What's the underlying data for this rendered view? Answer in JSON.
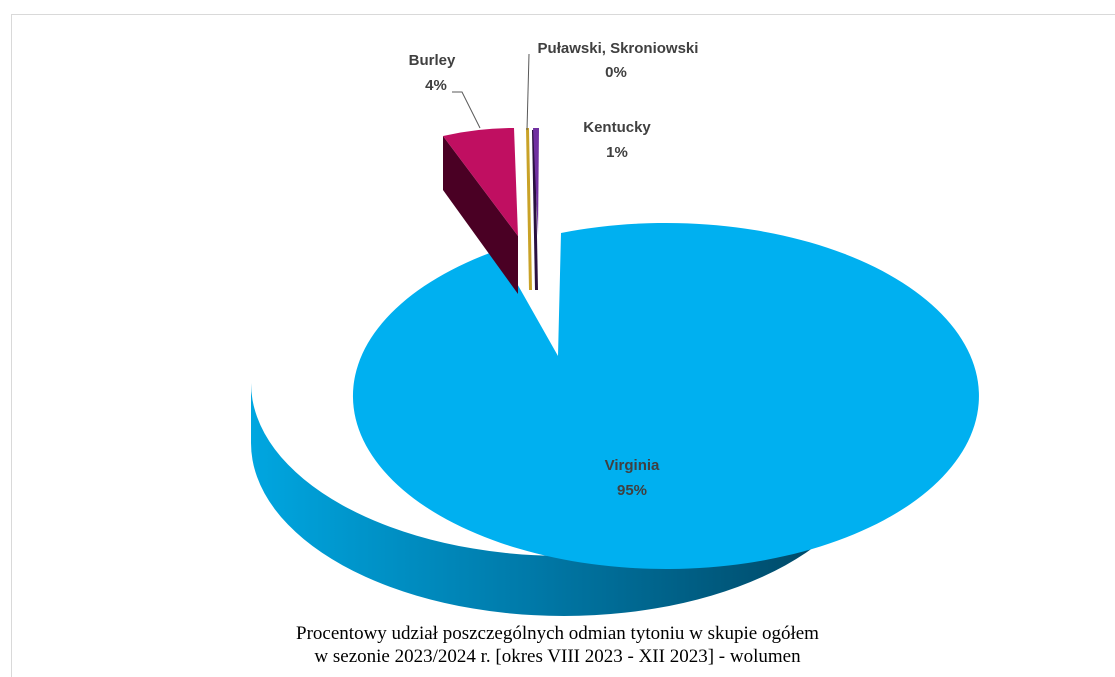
{
  "chart_data": {
    "type": "pie",
    "title_line1": "Procentowy  udział  poszczególnych  odmian  tytoniu  w  skupie  ogółem",
    "title_line2": "w  sezonie  2023/2024  r.  [okres  VIII  2023  -  XII  2023]  -  wolumen",
    "slices": [
      {
        "name": "Virginia",
        "value": 95,
        "label": "95%",
        "color": "#00b0f0"
      },
      {
        "name": "Burley",
        "value": 4,
        "label": "4%",
        "color": "#c00f61"
      },
      {
        "name": "Puławski, Skroniowski",
        "value": 0,
        "label": "0%",
        "color": "#c9a227"
      },
      {
        "name": "Kentucky",
        "value": 1,
        "label": "1%",
        "color": "#7030a0"
      }
    ],
    "legend": "none",
    "style": "3d-exploded"
  }
}
